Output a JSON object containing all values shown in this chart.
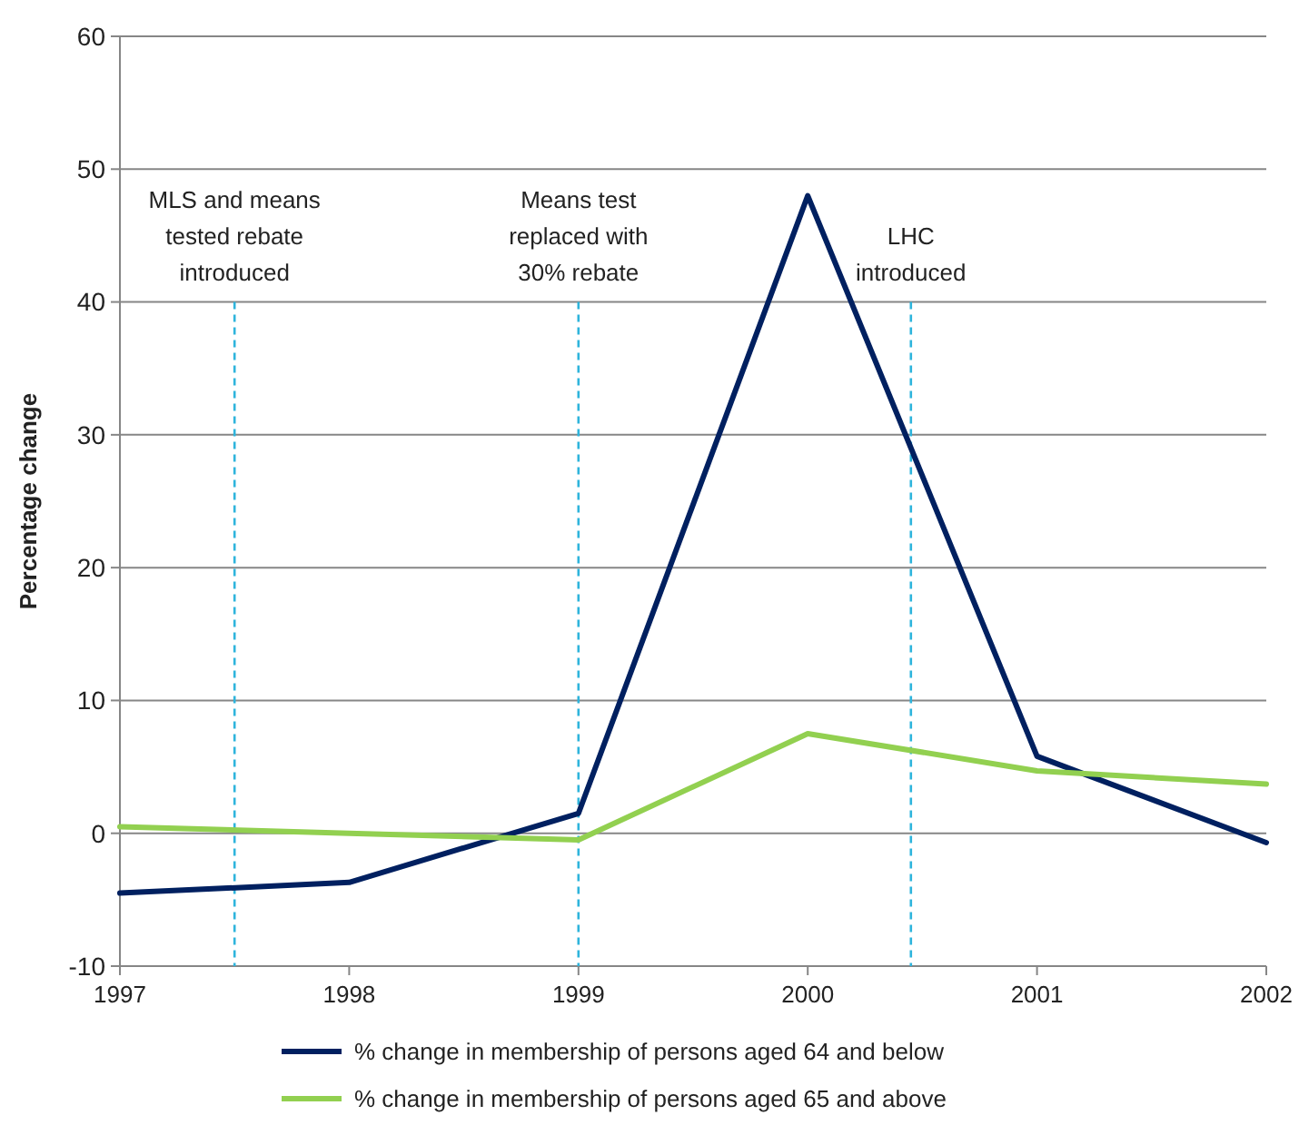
{
  "chart_data": {
    "type": "line",
    "ylabel": "Percentage change",
    "x": [
      1997,
      1998,
      1999,
      2000,
      2001,
      2002
    ],
    "xlim": [
      1997,
      2002
    ],
    "xticks": [
      1997,
      1998,
      1999,
      2000,
      2001,
      2002
    ],
    "ylim": [
      -10,
      60
    ],
    "yticks": [
      -10,
      0,
      10,
      20,
      30,
      40,
      50,
      60
    ],
    "grid": "y",
    "legend": "bottom",
    "marker": "none",
    "line_style": "solid",
    "series": [
      {
        "name": "% change in membership of persons aged 64 and below",
        "color": "#002060",
        "values": [
          -4.5,
          -3.7,
          1.5,
          48,
          5.8,
          -0.7
        ]
      },
      {
        "name": "% change in membership of persons aged 65 and above",
        "color": "#92d050",
        "values": [
          0.5,
          0,
          -0.5,
          7.5,
          4.7,
          3.7
        ]
      }
    ],
    "ref_lines": [
      {
        "axis": "x",
        "value": 1997.5,
        "label": "MLS and means\ntested rebate\nintroduced",
        "color": "#2eb4dc",
        "line_style": "dashed"
      },
      {
        "axis": "x",
        "value": 1999,
        "label": "Means test\nreplaced with\n30% rebate",
        "color": "#2eb4dc",
        "line_style": "dashed"
      },
      {
        "axis": "x",
        "value": 2000.45,
        "label": "LHC\nintroduced",
        "color": "#2eb4dc",
        "line_style": "dashed"
      }
    ]
  }
}
